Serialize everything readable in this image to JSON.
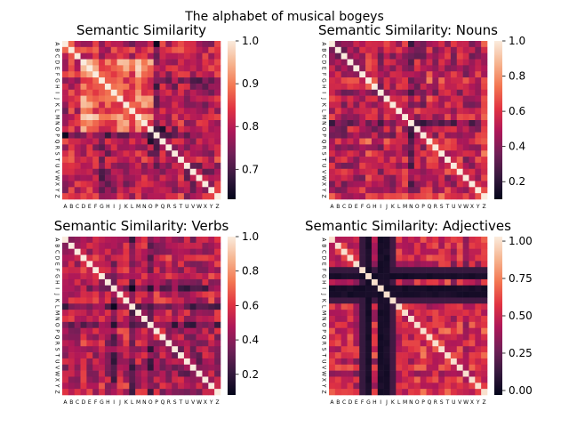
{
  "figure": {
    "suptitle": "The alphabet of musical bogeys",
    "letters": [
      "A",
      "B",
      "C",
      "D",
      "E",
      "F",
      "G",
      "H",
      "I",
      "J",
      "K",
      "L",
      "M",
      "N",
      "O",
      "P",
      "Q",
      "R",
      "S",
      "T",
      "U",
      "V",
      "W",
      "X",
      "Y",
      "Z"
    ]
  },
  "colormap": {
    "name": "rocket",
    "stops": [
      "#03051a",
      "#36193e",
      "#701f57",
      "#ad1759",
      "#e13342",
      "#f37651",
      "#f6b48f",
      "#faebdd"
    ]
  },
  "chart_data": [
    {
      "type": "heatmap",
      "title": "Semantic Similarity",
      "variant": "all",
      "vmin": 0.63,
      "vmax": 1.0,
      "colorbar_ticks": [
        "1.0",
        "0.9",
        "0.8",
        "0.7"
      ],
      "colorbar_tick_values": [
        1.0,
        0.9,
        0.8,
        0.7
      ],
      "diagonal": 1.0
    },
    {
      "type": "heatmap",
      "title": "Semantic Similarity: Nouns",
      "variant": "nouns",
      "vmin": 0.1,
      "vmax": 1.0,
      "colorbar_ticks": [
        "1.0",
        "0.8",
        "0.6",
        "0.4",
        "0.2"
      ],
      "colorbar_tick_values": [
        1.0,
        0.8,
        0.6,
        0.4,
        0.2
      ],
      "diagonal": 1.0
    },
    {
      "type": "heatmap",
      "title": "Semantic Similarity: Verbs",
      "variant": "verbs",
      "vmin": 0.08,
      "vmax": 1.0,
      "colorbar_ticks": [
        "1.0",
        "0.8",
        "0.6",
        "0.4",
        "0.2"
      ],
      "colorbar_tick_values": [
        1.0,
        0.8,
        0.6,
        0.4,
        0.2
      ],
      "diagonal": 1.0
    },
    {
      "type": "heatmap",
      "title": "Semantic Similarity: Adjectives",
      "variant": "adjectives",
      "vmin": -0.03,
      "vmax": 1.03,
      "colorbar_ticks": [
        "1.00",
        "0.75",
        "0.50",
        "0.25",
        "0.00"
      ],
      "colorbar_tick_values": [
        1.0,
        0.75,
        0.5,
        0.25,
        0.0
      ],
      "diagonal": 1.0
    }
  ]
}
